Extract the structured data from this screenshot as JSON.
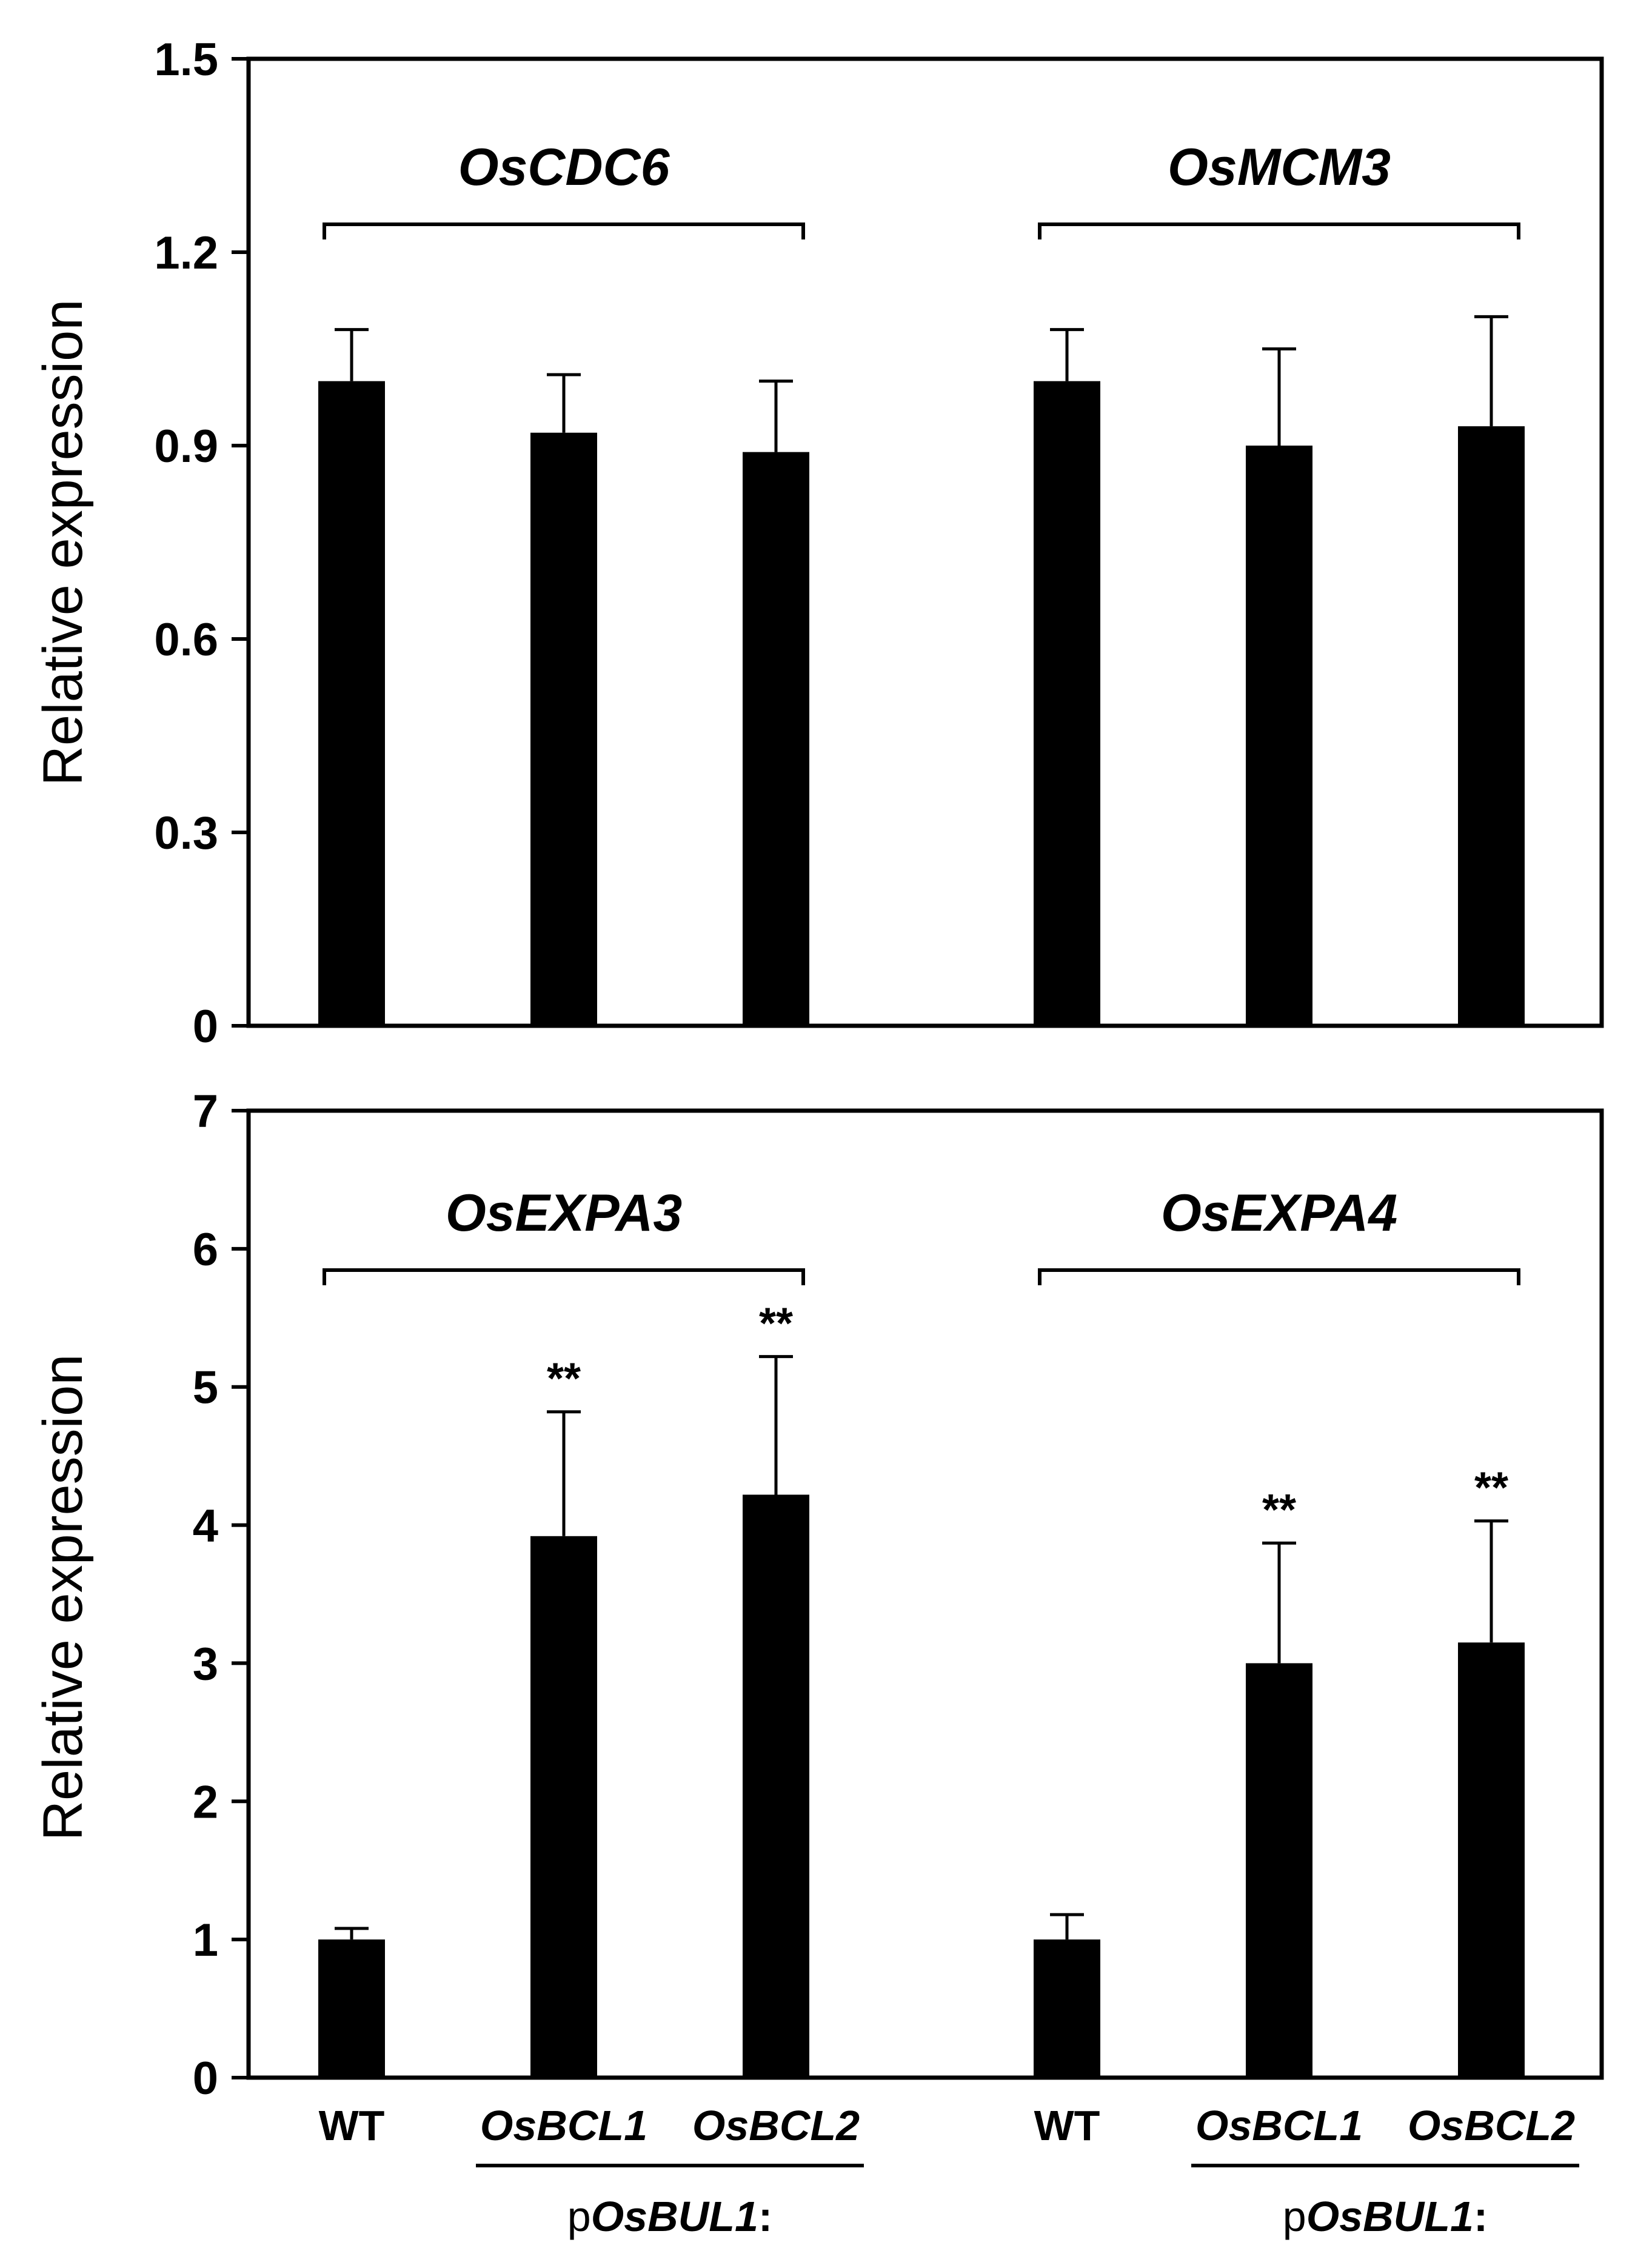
{
  "chart_data": [
    {
      "type": "bar",
      "panel": "top",
      "ylabel": "Relative expression",
      "ylim": [
        0,
        1.5
      ],
      "yticks": [
        "0",
        "0.3",
        "0.6",
        "0.9",
        "1.2",
        "1.5"
      ],
      "groups": [
        {
          "gene": "OsCDC6",
          "categories": [
            "WT",
            "OsBCL1",
            "OsBCL2"
          ],
          "values": [
            1.0,
            0.92,
            0.89
          ],
          "errors": [
            0.08,
            0.09,
            0.11
          ],
          "significance": [
            "",
            "",
            ""
          ]
        },
        {
          "gene": "OsMCM3",
          "categories": [
            "WT",
            "OsBCL1",
            "OsBCL2"
          ],
          "values": [
            1.0,
            0.9,
            0.93
          ],
          "errors": [
            0.08,
            0.15,
            0.17
          ],
          "significance": [
            "",
            "",
            ""
          ]
        }
      ]
    },
    {
      "type": "bar",
      "panel": "bottom",
      "ylabel": "Relative expression",
      "ylim": [
        0,
        7
      ],
      "yticks": [
        "0",
        "1",
        "2",
        "3",
        "4",
        "5",
        "6",
        "7"
      ],
      "groups": [
        {
          "gene": "OsEXPA3",
          "categories": [
            "WT",
            "OsBCL1",
            "OsBCL2"
          ],
          "values": [
            1.0,
            3.92,
            4.22
          ],
          "errors": [
            0.08,
            0.9,
            1.0
          ],
          "significance": [
            "",
            "**",
            "**"
          ]
        },
        {
          "gene": "OsEXPA4",
          "categories": [
            "WT",
            "OsBCL1",
            "OsBCL2"
          ],
          "values": [
            1.0,
            3.0,
            3.15
          ],
          "errors": [
            0.18,
            0.87,
            0.88
          ],
          "significance": [
            "",
            "**",
            "**"
          ]
        }
      ]
    }
  ],
  "construct_label": {
    "prefix": "p",
    "gene": "OsBUL1",
    "suffix": ":"
  }
}
